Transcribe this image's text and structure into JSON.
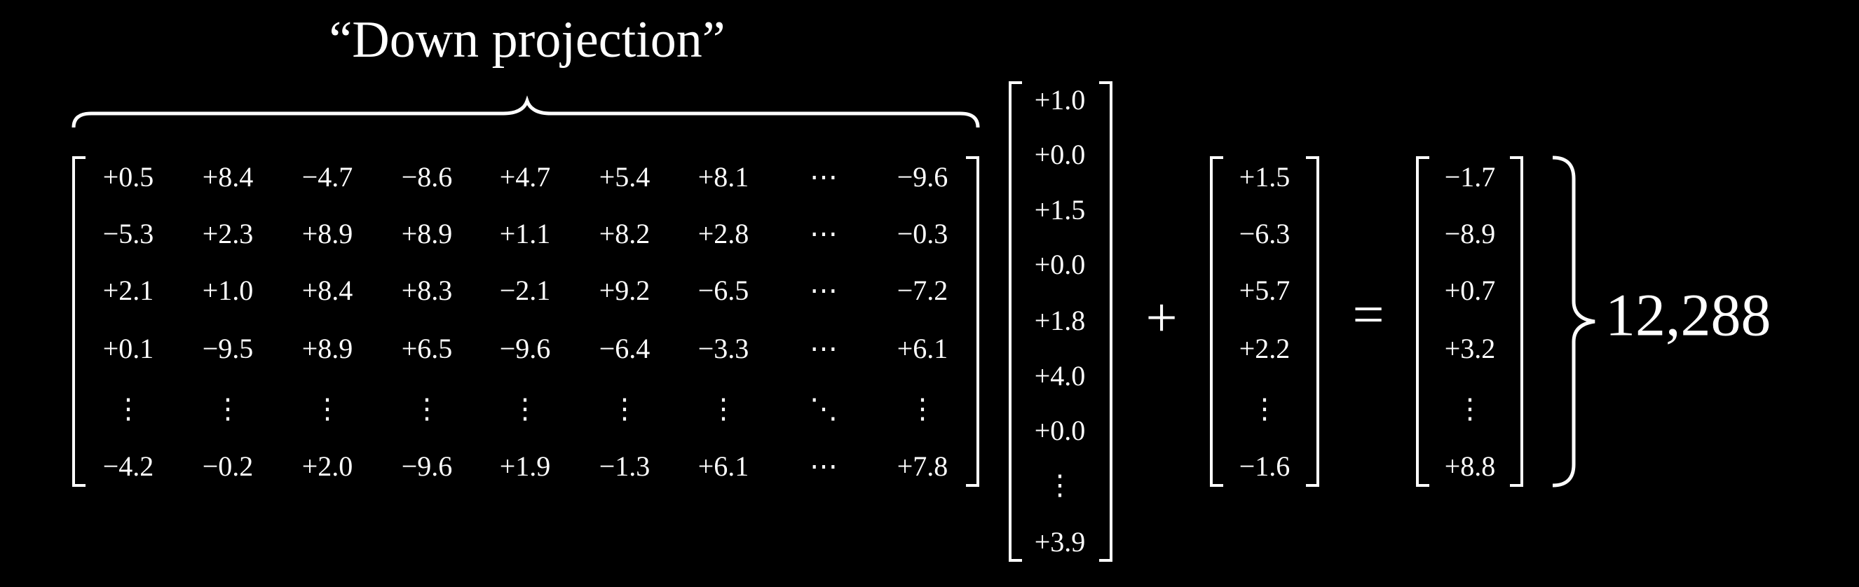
{
  "title": "“Down projection”",
  "matrix": {
    "rows": [
      [
        "+0.5",
        "+8.4",
        "−4.7",
        "−8.6",
        "+4.7",
        "+5.4",
        "+8.1",
        "⋯",
        "−9.6"
      ],
      [
        "−5.3",
        "+2.3",
        "+8.9",
        "+8.9",
        "+1.1",
        "+8.2",
        "+2.8",
        "⋯",
        "−0.3"
      ],
      [
        "+2.1",
        "+1.0",
        "+8.4",
        "+8.3",
        "−2.1",
        "+9.2",
        "−6.5",
        "⋯",
        "−7.2"
      ],
      [
        "+0.1",
        "−9.5",
        "+8.9",
        "+6.5",
        "−9.6",
        "−6.4",
        "−3.3",
        "⋯",
        "+6.1"
      ],
      [
        "⋮",
        "⋮",
        "⋮",
        "⋮",
        "⋮",
        "⋮",
        "⋮",
        "⋱",
        "⋮"
      ],
      [
        "−4.2",
        "−0.2",
        "+2.0",
        "−9.6",
        "+1.9",
        "−1.3",
        "+6.1",
        "⋯",
        "+7.8"
      ]
    ]
  },
  "vector": {
    "values": [
      "+1.0",
      "+0.0",
      "+1.5",
      "+0.0",
      "+1.8",
      "+4.0",
      "+0.0",
      "⋮",
      "+3.9"
    ]
  },
  "plus": "+",
  "bias": {
    "values": [
      "+1.5",
      "−6.3",
      "+5.7",
      "+2.2",
      "⋮",
      "−1.6"
    ]
  },
  "equals": "=",
  "result": {
    "values": [
      "−1.7",
      "−8.9",
      "+0.7",
      "+3.2",
      "⋮",
      "+8.8"
    ]
  },
  "dimension": "12,288"
}
